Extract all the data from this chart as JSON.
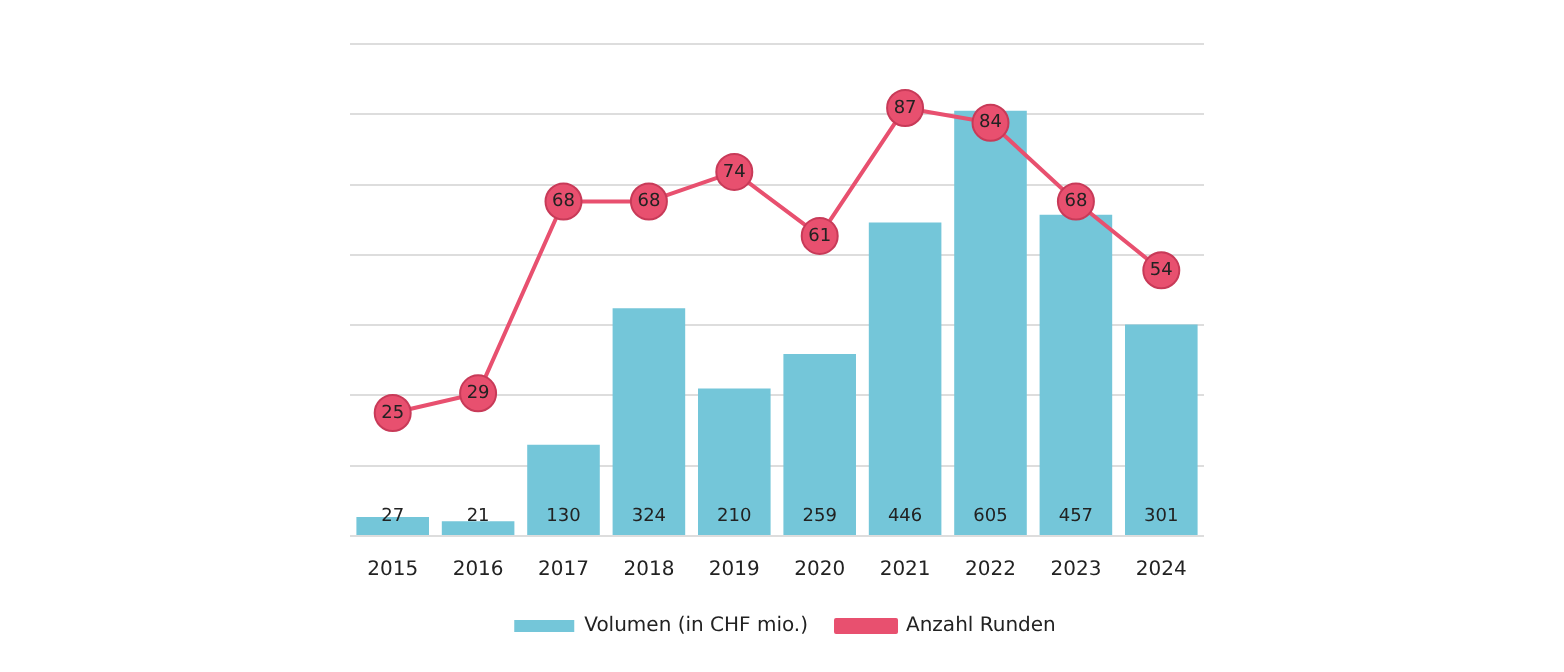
{
  "chart_data": {
    "type": "bar",
    "categories": [
      "2015",
      "2016",
      "2017",
      "2018",
      "2019",
      "2020",
      "2021",
      "2022",
      "2023",
      "2024"
    ],
    "series": [
      {
        "name": "Volumen (in CHF mio.)",
        "color": "#74c6d9",
        "values": [
          27,
          21,
          130,
          324,
          210,
          259,
          446,
          605,
          457,
          301
        ]
      },
      {
        "name": "Anzahl Runden",
        "type": "line",
        "axis": "y2",
        "color": "#e8506f",
        "values": [
          25,
          29,
          68,
          68,
          74,
          61,
          87,
          84,
          68,
          54
        ]
      }
    ],
    "ylim": [
      0,
      700
    ],
    "yticks": [
      {
        "value": 0,
        "label": null
      },
      {
        "value": 100,
        "label": null
      },
      {
        "value": 200,
        "label": null
      },
      {
        "value": 300,
        "label": null
      },
      {
        "value": 400,
        "label": null
      },
      {
        "value": 500,
        "label": null
      },
      {
        "value": 600,
        "label": null
      },
      {
        "value": 700,
        "label": null
      }
    ],
    "y2lim": [
      0,
      100
    ],
    "tick_labels": "x",
    "grid": "y",
    "legend": "bottom",
    "marker": "circle",
    "line_style": "solid",
    "data_labels": true
  }
}
